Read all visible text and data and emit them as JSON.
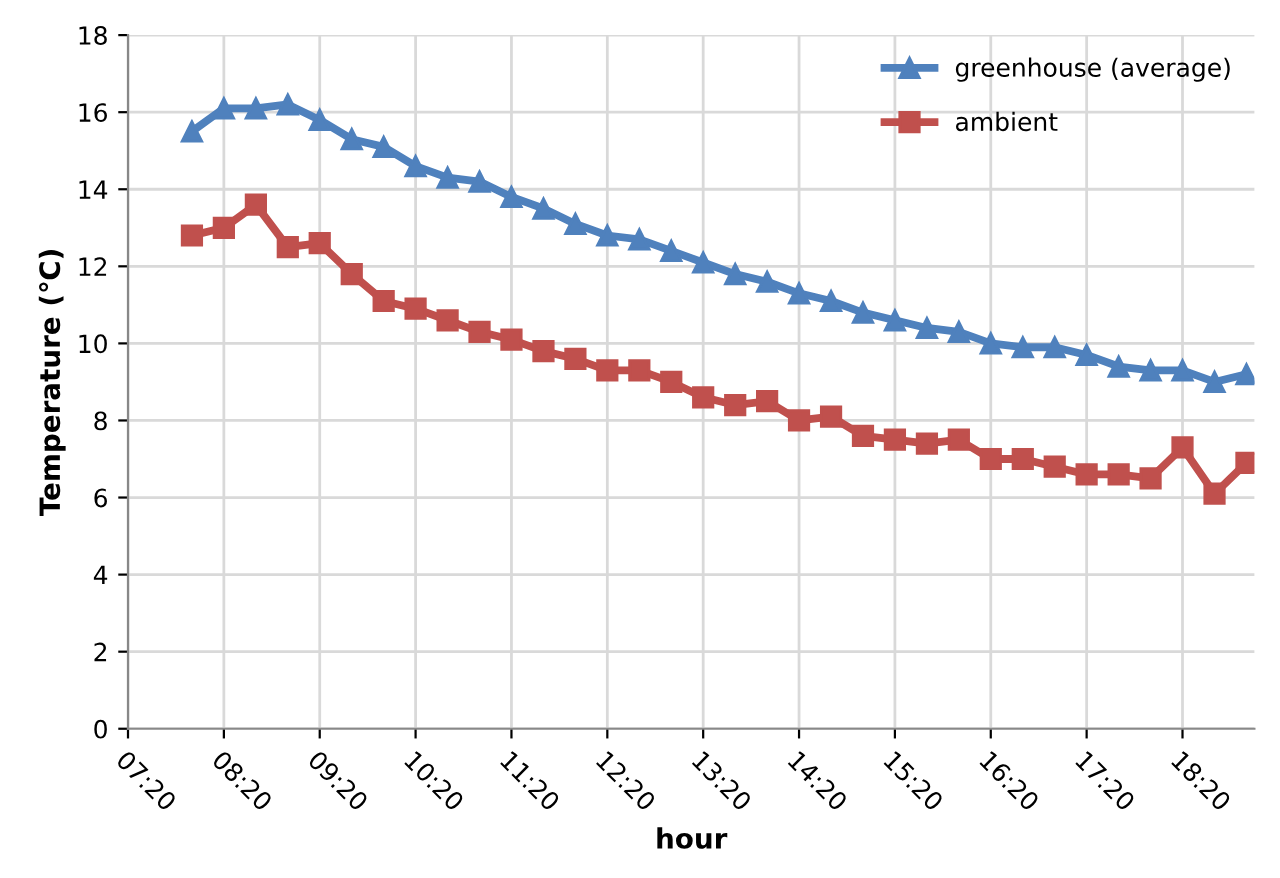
{
  "chart_data": {
    "type": "line",
    "xlabel": "hour",
    "ylabel": "Temperature (℃)",
    "x": [
      8.0,
      8.333,
      8.667,
      9.0,
      9.333,
      9.667,
      10.0,
      10.333,
      10.667,
      11.0,
      11.333,
      11.667,
      12.0,
      12.333,
      12.667,
      13.0,
      13.333,
      13.667,
      14.0,
      14.333,
      14.667,
      15.0,
      15.333,
      15.667,
      16.0,
      16.333,
      16.667,
      17.0,
      17.333,
      17.667,
      18.0,
      18.333,
      18.667,
      19.0
    ],
    "series": [
      {
        "name": "greenhouse (average)",
        "color": "#4f81bd",
        "marker": "triangle",
        "values": [
          15.5,
          16.1,
          16.1,
          16.2,
          15.8,
          15.3,
          15.1,
          14.6,
          14.3,
          14.2,
          13.8,
          13.5,
          13.1,
          12.8,
          12.7,
          12.4,
          12.1,
          11.8,
          11.6,
          11.3,
          11.1,
          10.8,
          10.6,
          10.4,
          10.3,
          10.0,
          9.9,
          9.9,
          9.7,
          9.4,
          9.3,
          9.3,
          9.0,
          9.2
        ]
      },
      {
        "name": "ambient",
        "color": "#c0504d",
        "marker": "square",
        "values": [
          12.8,
          13.0,
          13.6,
          12.5,
          12.6,
          11.8,
          11.1,
          10.9,
          10.6,
          10.3,
          10.1,
          9.8,
          9.6,
          9.3,
          9.3,
          9.0,
          8.6,
          8.4,
          8.5,
          8.0,
          8.1,
          7.6,
          7.5,
          7.4,
          7.5,
          7.0,
          7.0,
          6.8,
          6.6,
          6.6,
          6.5,
          7.3,
          6.1,
          6.9
        ]
      }
    ],
    "xlim": [
      7.333,
      19.083
    ],
    "xticks": [
      {
        "value": 7.333,
        "label": "07:20"
      },
      {
        "value": 8.333,
        "label": "08:20"
      },
      {
        "value": 9.333,
        "label": "09:20"
      },
      {
        "value": 10.333,
        "label": "10:20"
      },
      {
        "value": 11.333,
        "label": "11:20"
      },
      {
        "value": 12.333,
        "label": "12:20"
      },
      {
        "value": 13.333,
        "label": "13:20"
      },
      {
        "value": 14.333,
        "label": "14:20"
      },
      {
        "value": 15.333,
        "label": "15:20"
      },
      {
        "value": 16.333,
        "label": "16:20"
      },
      {
        "value": 17.333,
        "label": "17:20"
      },
      {
        "value": 18.333,
        "label": "18:20"
      }
    ],
    "ylim": [
      0,
      18
    ],
    "yticks": [
      0,
      2,
      4,
      6,
      8,
      10,
      12,
      14,
      16,
      18
    ],
    "grid": true,
    "legend": "top right",
    "line_style": "solid"
  }
}
